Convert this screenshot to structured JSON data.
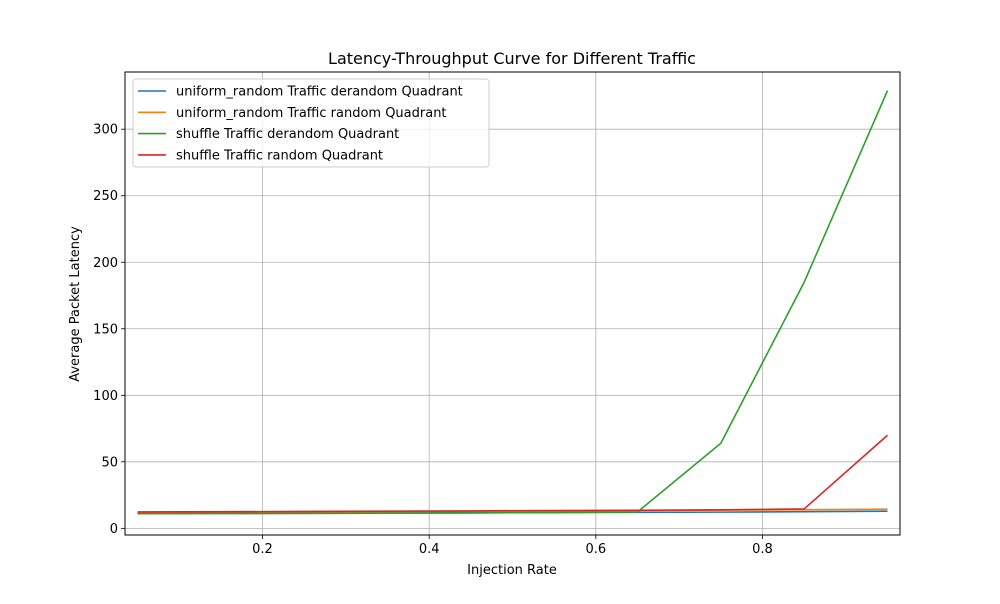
{
  "chart_data": {
    "type": "line",
    "title": "Latency-Throughput Curve for Different Traffic",
    "xlabel": "Injection Rate",
    "ylabel": "Average Packet Latency",
    "xlim": [
      0.035,
      0.965
    ],
    "ylim": [
      -5,
      343
    ],
    "x_ticks": [
      0.2,
      0.4,
      0.6,
      0.8
    ],
    "x_tick_labels": [
      "0.2",
      "0.4",
      "0.6",
      "0.8"
    ],
    "y_ticks": [
      0,
      50,
      100,
      150,
      200,
      250,
      300
    ],
    "y_tick_labels": [
      "0",
      "50",
      "100",
      "150",
      "200",
      "250",
      "300"
    ],
    "grid": true,
    "legend_position": "top-left",
    "x": [
      0.05,
      0.15,
      0.25,
      0.35,
      0.45,
      0.55,
      0.65,
      0.75,
      0.85,
      0.95
    ],
    "series": [
      {
        "name": "uniform_random Traffic derandom Quadrant",
        "color": "#1f77b4",
        "values": [
          11.3,
          11.4,
          11.5,
          11.6,
          11.7,
          11.9,
          12.0,
          12.2,
          12.5,
          12.9
        ]
      },
      {
        "name": "uniform_random Traffic random Quadrant",
        "color": "#ff7f0e",
        "values": [
          12.0,
          12.2,
          12.4,
          12.6,
          12.9,
          13.1,
          13.4,
          13.7,
          14.0,
          14.4
        ]
      },
      {
        "name": "shuffle Traffic derandom Quadrant",
        "color": "#2ca02c",
        "values": [
          11.0,
          11.1,
          11.2,
          11.4,
          11.6,
          11.9,
          12.3,
          64.0,
          185.0,
          329.0
        ]
      },
      {
        "name": "shuffle Traffic random Quadrant",
        "color": "#d62728",
        "values": [
          12.3,
          12.5,
          12.7,
          12.9,
          13.1,
          13.4,
          13.6,
          13.9,
          14.6,
          70.0
        ]
      }
    ]
  }
}
